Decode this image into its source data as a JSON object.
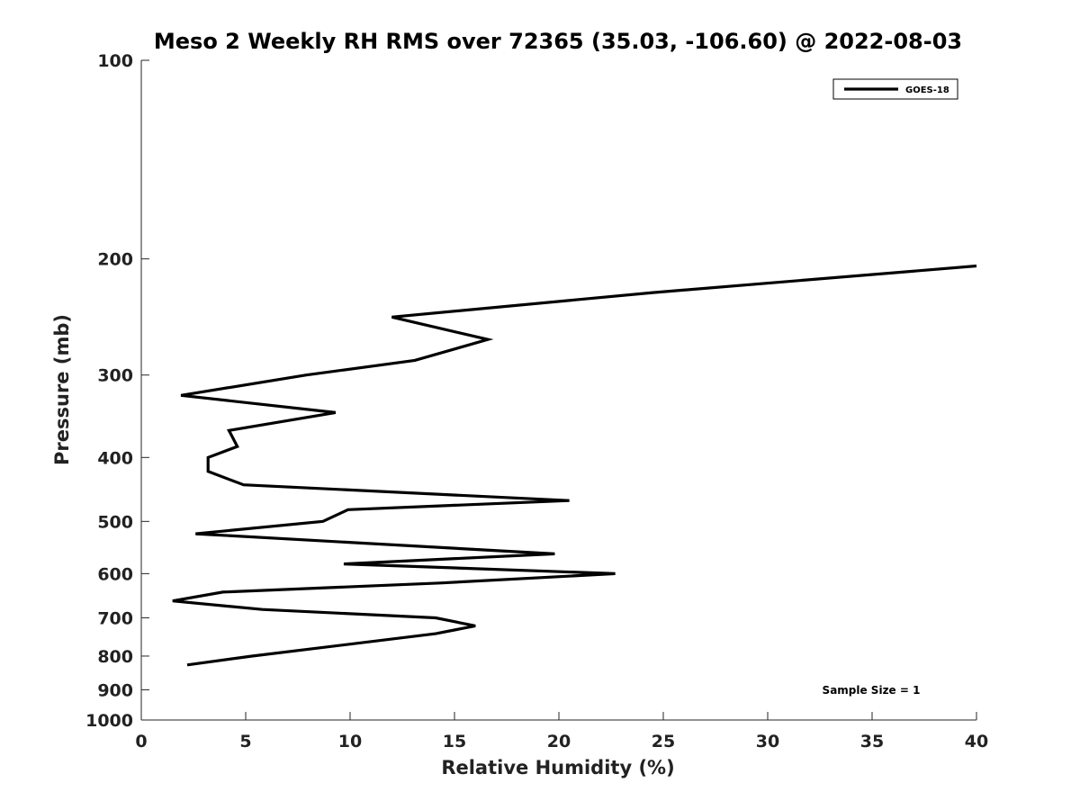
{
  "chart_data": {
    "type": "line",
    "title": "Meso 2 Weekly RH RMS over 72365 (35.03, -106.60) @ 2022-08-03",
    "xlabel": "Relative Humidity (%)",
    "ylabel": "Pressure (mb)",
    "xlim": [
      0,
      40
    ],
    "ylim": [
      1000,
      100
    ],
    "yscale": "log",
    "x_ticks": [
      0,
      5,
      10,
      15,
      20,
      25,
      30,
      35,
      40
    ],
    "y_ticks": [
      100,
      200,
      300,
      400,
      500,
      600,
      700,
      800,
      900,
      1000
    ],
    "grid": false,
    "legend_position": "top-right",
    "series": [
      {
        "name": "GOES-18",
        "color": "#000000",
        "points": [
          {
            "rh": 40.0,
            "p": 205
          },
          {
            "rh": 24.5,
            "p": 225
          },
          {
            "rh": 12.0,
            "p": 245
          },
          {
            "rh": 16.6,
            "p": 265
          },
          {
            "rh": 13.1,
            "p": 285
          },
          {
            "rh": 7.9,
            "p": 300
          },
          {
            "rh": 1.9,
            "p": 322
          },
          {
            "rh": 9.3,
            "p": 342
          },
          {
            "rh": 4.2,
            "p": 364
          },
          {
            "rh": 4.6,
            "p": 385
          },
          {
            "rh": 3.2,
            "p": 400
          },
          {
            "rh": 3.2,
            "p": 420
          },
          {
            "rh": 4.9,
            "p": 440
          },
          {
            "rh": 20.5,
            "p": 465
          },
          {
            "rh": 9.9,
            "p": 480
          },
          {
            "rh": 8.7,
            "p": 500
          },
          {
            "rh": 2.6,
            "p": 522
          },
          {
            "rh": 19.8,
            "p": 560
          },
          {
            "rh": 9.7,
            "p": 580
          },
          {
            "rh": 22.7,
            "p": 600
          },
          {
            "rh": 14.3,
            "p": 620
          },
          {
            "rh": 3.9,
            "p": 640
          },
          {
            "rh": 1.5,
            "p": 660
          },
          {
            "rh": 5.8,
            "p": 680
          },
          {
            "rh": 14.1,
            "p": 700
          },
          {
            "rh": 16.0,
            "p": 720
          },
          {
            "rh": 14.1,
            "p": 740
          },
          {
            "rh": 5.3,
            "p": 800
          },
          {
            "rh": 2.2,
            "p": 825
          }
        ]
      }
    ],
    "annotations": {
      "sample_size": "Sample Size = 1"
    }
  }
}
